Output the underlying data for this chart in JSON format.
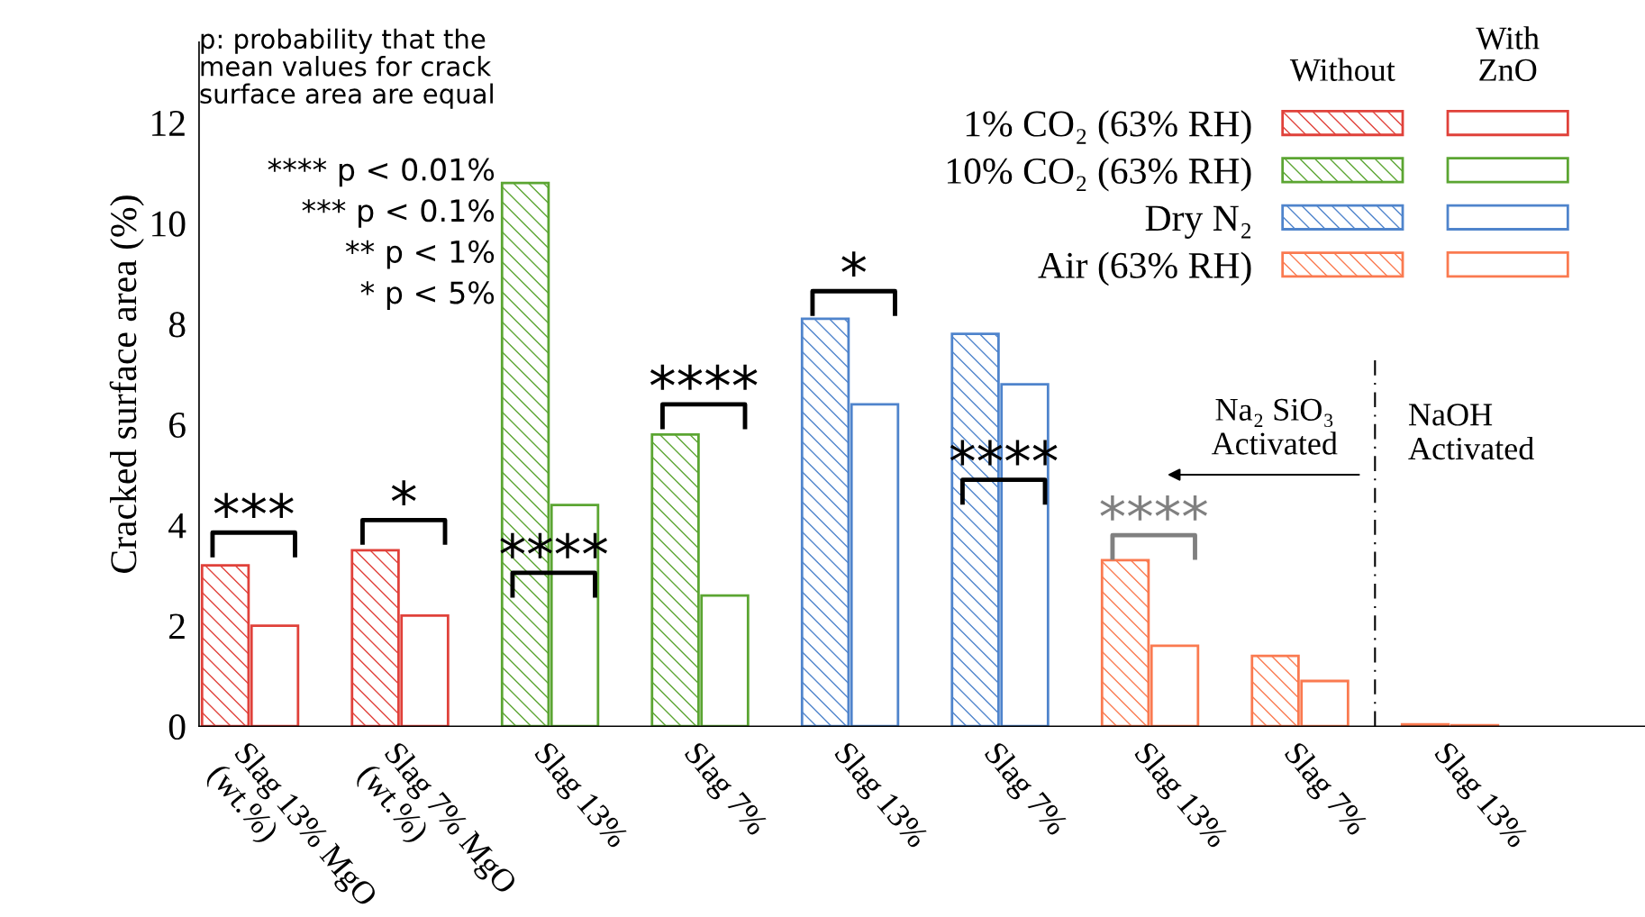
{
  "chart_data": {
    "type": "bar",
    "ylabel": "Cracked surface area (%)",
    "categories": [
      "Slag 13% MgO\n(wt.%)",
      "Slag 7% MgO\n(wt.%)",
      "Slag 13%",
      "Slag 7%",
      "Slag 13%",
      "Slag 7%",
      "Slag 13%",
      "Slag 7%",
      "Slag 13%"
    ],
    "series": [
      {
        "name": "1% CO₂ (63% RH)",
        "color": "#e0413a",
        "values": [
          3.2,
          3.5,
          null,
          null,
          null,
          null,
          null,
          null,
          null
        ]
      },
      {
        "color": "#e0413a",
        "values": [
          2.0,
          2.2,
          null,
          null,
          null,
          null,
          null,
          null,
          null
        ]
      },
      {
        "name": "10% CO₂ (63% RH)",
        "color": "#5ba532",
        "values": [
          null,
          null,
          10.8,
          5.8,
          null,
          null,
          null,
          null,
          null
        ]
      },
      {
        "color": "#5ba532",
        "values": [
          null,
          null,
          4.4,
          2.6,
          null,
          null,
          null,
          null,
          null
        ]
      },
      {
        "name": "Dry N₂",
        "color": "#4f84cc",
        "values": [
          null,
          null,
          null,
          null,
          8.1,
          7.8,
          null,
          null,
          null
        ]
      },
      {
        "color": "#4f84cc",
        "values": [
          null,
          null,
          null,
          null,
          6.4,
          6.8,
          null,
          null,
          null
        ]
      },
      {
        "name": "Air (63% RH)",
        "color": "#fa7a50",
        "values": [
          null,
          null,
          null,
          null,
          null,
          null,
          3.3,
          1.4,
          0.04
        ]
      },
      {
        "color": "#fa7a50",
        "values": [
          null,
          null,
          null,
          null,
          null,
          null,
          1.6,
          0.9,
          0.02
        ]
      }
    ],
    "ylim": [
      0,
      13.6
    ],
    "yticks": [
      0,
      2,
      4,
      6,
      8,
      10,
      12
    ],
    "grid": false,
    "legend": "top right",
    "annotations": [
      "p: probability that the\nmean values for crack\nsurface area are equal",
      "**** p < 0.01%",
      "*** p < 0.1%",
      "** p < 1%",
      "* p < 5%",
      "Na₂ SiO₃\nActivated",
      "NaOH\nActivated",
      "Without",
      "With\nZnO",
      "***",
      "*",
      "****",
      "****",
      "*",
      "****",
      "****"
    ]
  }
}
